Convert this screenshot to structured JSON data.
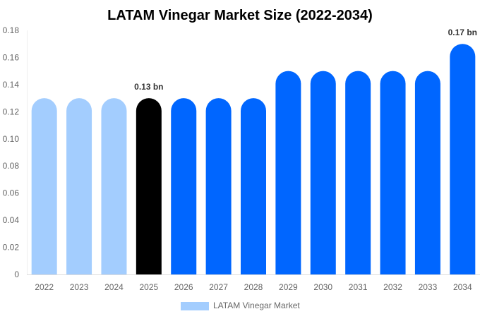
{
  "chart_data": {
    "type": "bar",
    "title": "LATAM Vinegar Market Size (2022-2034)",
    "categories": [
      "2022",
      "2023",
      "2024",
      "2025",
      "2026",
      "2027",
      "2028",
      "2029",
      "2030",
      "2031",
      "2032",
      "2033",
      "2034"
    ],
    "series": [
      {
        "name": "LATAM Vinegar Market",
        "values": [
          0.13,
          0.13,
          0.13,
          0.13,
          0.13,
          0.13,
          0.13,
          0.15,
          0.15,
          0.15,
          0.15,
          0.15,
          0.17
        ]
      }
    ],
    "bar_colors": [
      "#a3cdfe",
      "#a3cdfe",
      "#a3cdfe",
      "#000000",
      "#0066ff",
      "#0066ff",
      "#0066ff",
      "#0066ff",
      "#0066ff",
      "#0066ff",
      "#0066ff",
      "#0066ff",
      "#0066ff"
    ],
    "data_labels": [
      {
        "index": 3,
        "text": "0.13 bn"
      },
      {
        "index": 12,
        "text": "0.17 bn"
      }
    ],
    "ylim": [
      0,
      0.18
    ],
    "yticks": [
      "0",
      "0.02",
      "0.04",
      "0.06",
      "0.08",
      "0.10",
      "0.12",
      "0.14",
      "0.16",
      "0.18"
    ],
    "grid": false,
    "legend": {
      "position": "bottom",
      "color": "#a3cdfe"
    },
    "xlabel": "",
    "ylabel": ""
  }
}
